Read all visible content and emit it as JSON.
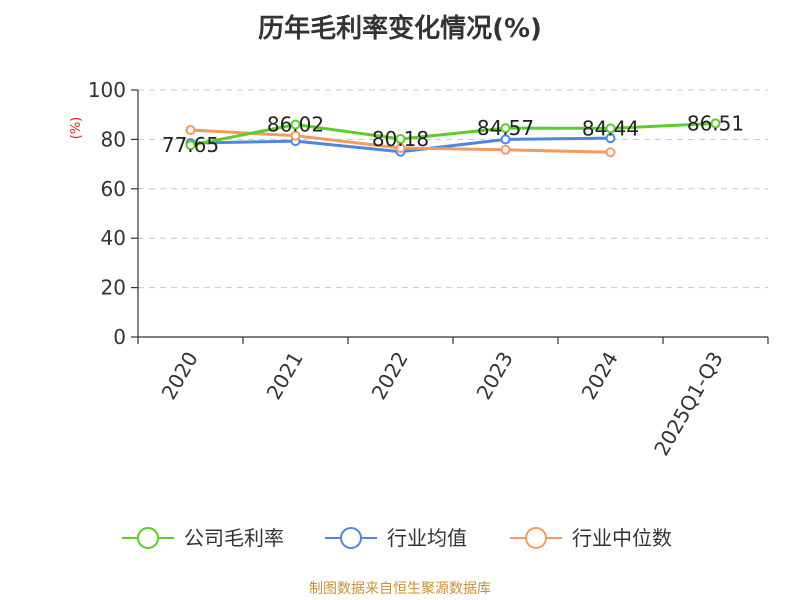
{
  "title": "历年毛利率变化情况(%)",
  "source": "制图数据来自恒生聚源数据库",
  "chart_data": {
    "type": "line",
    "title": "历年毛利率变化情况(%)",
    "ylabel": "(%)",
    "ylim": [
      0,
      100
    ],
    "yticks": [
      0,
      20,
      40,
      60,
      80,
      100
    ],
    "categories": [
      "2020",
      "2021",
      "2022",
      "2023",
      "2024",
      "2025Q1-Q3"
    ],
    "grid": true,
    "legend_position": "bottom",
    "series": [
      {
        "name": "公司毛利率",
        "color": "#5ccc2a",
        "values": [
          77.65,
          86.02,
          80.18,
          84.57,
          84.44,
          86.51
        ],
        "show_labels": true
      },
      {
        "name": "行业均值",
        "color": "#4f86e0",
        "values": [
          78.5,
          79.3,
          75.0,
          80.0,
          80.5,
          null
        ],
        "show_labels": false
      },
      {
        "name": "行业中位数",
        "color": "#f39a5d",
        "values": [
          83.8,
          81.5,
          76.5,
          75.8,
          74.8,
          null
        ],
        "show_labels": false
      }
    ]
  }
}
